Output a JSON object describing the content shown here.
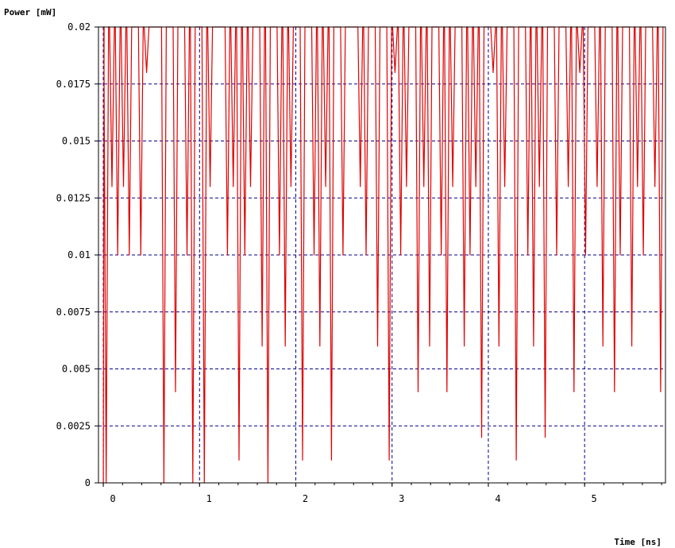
{
  "chart_data": {
    "type": "line",
    "title": "",
    "ylabel": "Power [mW]",
    "xlabel": "Time [ns]",
    "xlim": [
      -0.05,
      5.84
    ],
    "ylim": [
      0,
      0.02
    ],
    "x_ticks": [
      0,
      1,
      2,
      3,
      4,
      5
    ],
    "x_tick_labels": [
      "0",
      "1",
      "2",
      "3",
      "4",
      "5"
    ],
    "y_ticks": [
      0,
      0.0025,
      0.005,
      0.0075,
      0.01,
      0.0125,
      0.015,
      0.0175,
      0.02
    ],
    "y_tick_labels": [
      "0",
      "0.0025",
      "0.005",
      "0.0075",
      "0.01",
      "0.0125",
      "0.015",
      "0.0175",
      "0.02"
    ],
    "grid": true,
    "grid_style": "dashed",
    "grid_color": "#00008b",
    "line_color": "#e00000",
    "series": [
      {
        "name": "",
        "x": [
          0.0,
          0.06,
          0.12,
          0.18,
          0.24,
          0.3,
          0.36,
          0.42,
          0.48,
          0.54,
          0.6,
          0.66,
          0.72,
          0.78,
          0.84,
          0.9,
          0.96,
          1.02,
          1.08,
          1.14,
          1.2,
          1.26,
          1.32,
          1.38,
          1.44,
          1.5,
          1.56,
          1.62,
          1.68,
          1.74,
          1.8,
          1.86,
          1.92,
          1.98,
          2.04,
          2.1,
          2.16,
          2.22,
          2.28,
          2.34,
          2.4,
          2.46,
          2.52,
          2.58,
          2.64,
          2.7,
          2.76,
          2.82,
          2.88,
          2.94,
          3.0,
          3.06,
          3.12,
          3.18,
          3.24,
          3.3,
          3.36,
          3.42,
          3.48,
          3.54,
          3.6,
          3.66,
          3.72,
          3.78,
          3.84,
          3.9,
          3.96,
          4.02,
          4.08,
          4.14,
          4.2,
          4.26,
          4.32,
          4.38,
          4.44,
          4.5,
          4.56,
          4.62,
          4.68,
          4.74,
          4.8,
          4.86,
          4.92,
          4.98,
          5.04,
          5.1,
          5.16,
          5.22,
          5.28,
          5.34,
          5.4,
          5.46,
          5.52,
          5.58,
          5.64,
          5.7,
          5.76
        ],
        "values": [
          0,
          0.013,
          0.01,
          0.013,
          0.01,
          0.02,
          0.01,
          0.018,
          0.02,
          0.02,
          0,
          0.02,
          0.004,
          0.02,
          0.01,
          0,
          0.02,
          0,
          0.013,
          0.02,
          0.02,
          0.01,
          0.013,
          0.001,
          0.01,
          0.013,
          0.02,
          0.006,
          0,
          0.02,
          0.01,
          0.006,
          0.013,
          0.02,
          0.001,
          0.02,
          0.01,
          0.006,
          0.013,
          0.001,
          0.02,
          0.01,
          0.02,
          0.02,
          0.013,
          0.01,
          0.02,
          0.006,
          0.02,
          0.001,
          0.018,
          0.01,
          0.013,
          0.02,
          0.004,
          0.013,
          0.006,
          0.02,
          0.01,
          0.004,
          0.013,
          0.02,
          0.006,
          0.01,
          0.013,
          0.002,
          0.02,
          0.018,
          0.006,
          0.013,
          0.02,
          0.001,
          0.02,
          0.01,
          0.006,
          0.013,
          0.002,
          0.02,
          0.01,
          0.02,
          0.013,
          0.004,
          0.018,
          0.01,
          0.02,
          0.013,
          0.006,
          0.02,
          0.004,
          0.01,
          0.02,
          0.006,
          0.013,
          0.01,
          0.02,
          0.013,
          0.004
        ]
      }
    ]
  }
}
